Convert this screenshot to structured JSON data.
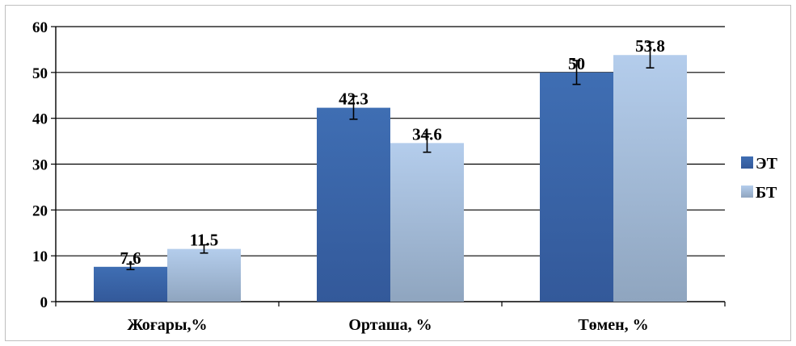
{
  "chart_data": {
    "type": "bar",
    "categories": [
      "Жоғары,%",
      "Орташа, %",
      "Төмен, %"
    ],
    "series": [
      {
        "name": "ЭТ",
        "values": [
          7.6,
          42.3,
          50
        ],
        "error": [
          0.6,
          2.5,
          2.6
        ],
        "color": "#3B67A8"
      },
      {
        "name": "БТ",
        "values": [
          11.5,
          34.6,
          53.8
        ],
        "error": [
          0.9,
          2.0,
          2.8
        ],
        "color": "#A9C4E6"
      }
    ],
    "data_labels": [
      [
        "7.6",
        "42.3",
        "50"
      ],
      [
        "11.5",
        "34.6",
        "53.8"
      ]
    ],
    "ylim": [
      0,
      60
    ],
    "yticks": [
      0,
      10,
      20,
      30,
      40,
      50,
      60
    ],
    "ytick_labels": [
      "0",
      "10",
      "20",
      "30",
      "40",
      "50",
      "60"
    ],
    "grid": true,
    "error_bars": true,
    "legend_position": "right",
    "title": "",
    "xlabel": "",
    "ylabel": ""
  }
}
